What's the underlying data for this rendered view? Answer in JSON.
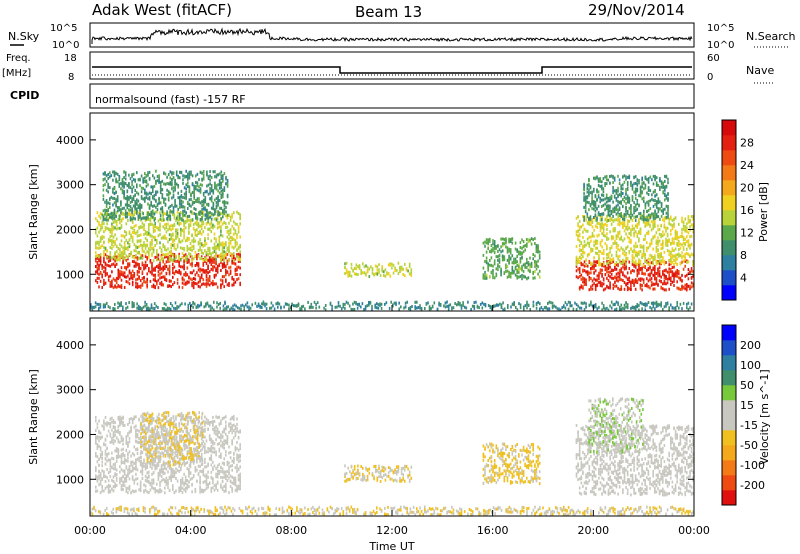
{
  "header": {
    "station": "Adak West (fitACF)",
    "beam": "Beam 13",
    "date": "29/Nov/2014"
  },
  "top_panels": {
    "nsky_label": "N.Sky",
    "nsky_ticks": [
      "10^5",
      "10^0"
    ],
    "nsearch_label": "N.Search",
    "nsearch_ticks": [
      "10^5",
      "10^0"
    ],
    "freq_label_line1": "Freq.",
    "freq_label_line2": "[MHz]",
    "freq_ticks": [
      "18",
      "8"
    ],
    "nave_label": "Nave",
    "nave_ticks": [
      "60",
      "0"
    ],
    "cpid_label": "CPID",
    "cpid_text": "normalsound (fast) -157 RF"
  },
  "chart_data": [
    {
      "type": "heatmap",
      "title": "",
      "xlabel": "Time UT",
      "ylabel": "Slant Range [km]",
      "xlim": [
        "00:00",
        "24:00"
      ],
      "ylim": [
        180,
        4600
      ],
      "x_ticks": [
        "00:00",
        "04:00",
        "08:00",
        "12:00",
        "16:00",
        "20:00",
        "00:00"
      ],
      "y_ticks": [
        "1000",
        "2000",
        "3000",
        "4000"
      ],
      "colorbar": {
        "label": "Power [dB]",
        "ticks": [
          "4",
          "8",
          "12",
          "16",
          "20",
          "24",
          "28"
        ],
        "range": [
          0,
          30
        ],
        "colors": [
          "#0000ff",
          "#1c4fc8",
          "#2e7fa0",
          "#3f8f6c",
          "#5aa84a",
          "#b8d23a",
          "#f0d020",
          "#f4a81c",
          "#f47a18",
          "#ee4a12",
          "#e42010",
          "#d60a0a"
        ]
      },
      "scatter_regions": [
        {
          "t_start": 0.2,
          "t_end": 6.0,
          "range_low": 700,
          "range_high": 1450,
          "value": 26
        },
        {
          "t_start": 0.2,
          "t_end": 6.0,
          "range_low": 1300,
          "range_high": 2400,
          "value": 14
        },
        {
          "t_start": 0.5,
          "t_end": 5.5,
          "range_low": 2200,
          "range_high": 3300,
          "value": 9
        },
        {
          "t_start": 10.1,
          "t_end": 12.8,
          "range_low": 950,
          "range_high": 1250,
          "value": 14
        },
        {
          "t_start": 15.6,
          "t_end": 17.9,
          "range_low": 900,
          "range_high": 1800,
          "value": 11
        },
        {
          "t_start": 19.3,
          "t_end": 24.0,
          "range_low": 650,
          "range_high": 1300,
          "value": 26
        },
        {
          "t_start": 19.3,
          "t_end": 24.0,
          "range_low": 1200,
          "range_high": 2300,
          "value": 15
        },
        {
          "t_start": 19.6,
          "t_end": 23.0,
          "range_low": 2200,
          "range_high": 3200,
          "value": 9
        },
        {
          "t_start": 0.0,
          "t_end": 24.0,
          "range_low": 180,
          "range_high": 380,
          "value": 8
        }
      ]
    },
    {
      "type": "heatmap",
      "title": "",
      "xlabel": "Time UT",
      "ylabel": "Slant Range [km]",
      "xlim": [
        "00:00",
        "24:00"
      ],
      "ylim": [
        180,
        4600
      ],
      "x_ticks": [
        "00:00",
        "04:00",
        "08:00",
        "12:00",
        "16:00",
        "20:00",
        "00:00"
      ],
      "y_ticks": [
        "1000",
        "2000",
        "3000",
        "4000"
      ],
      "colorbar": {
        "label": "Velocity [m s^-1]",
        "ticks": [
          "200",
          "100",
          "50",
          "15",
          "-15",
          "-50",
          "-100",
          "-200"
        ],
        "range": [
          -250,
          250
        ],
        "colors": [
          "#e0100e",
          "#ee4a12",
          "#f47a18",
          "#f4a81c",
          "#f0c020",
          "#c8c8c0",
          "#c8c8c0",
          "#78c83c",
          "#3f8f6c",
          "#2e7fa0",
          "#1c4fc8",
          "#0000ff"
        ]
      },
      "scatter_regions": [
        {
          "t_start": 0.2,
          "t_end": 6.0,
          "range_low": 700,
          "range_high": 2400,
          "value": 0
        },
        {
          "t_start": 2.0,
          "t_end": 4.5,
          "range_low": 1300,
          "range_high": 2500,
          "value": -40
        },
        {
          "t_start": 10.1,
          "t_end": 12.8,
          "range_low": 950,
          "range_high": 1300,
          "value": -40
        },
        {
          "t_start": 15.6,
          "t_end": 17.9,
          "range_low": 900,
          "range_high": 1800,
          "value": -50
        },
        {
          "t_start": 19.3,
          "t_end": 24.0,
          "range_low": 650,
          "range_high": 2200,
          "value": 0
        },
        {
          "t_start": 19.8,
          "t_end": 22.0,
          "range_low": 1600,
          "range_high": 2800,
          "value": 30
        },
        {
          "t_start": 0.0,
          "t_end": 24.0,
          "range_low": 180,
          "range_high": 380,
          "value": -40
        }
      ]
    }
  ]
}
